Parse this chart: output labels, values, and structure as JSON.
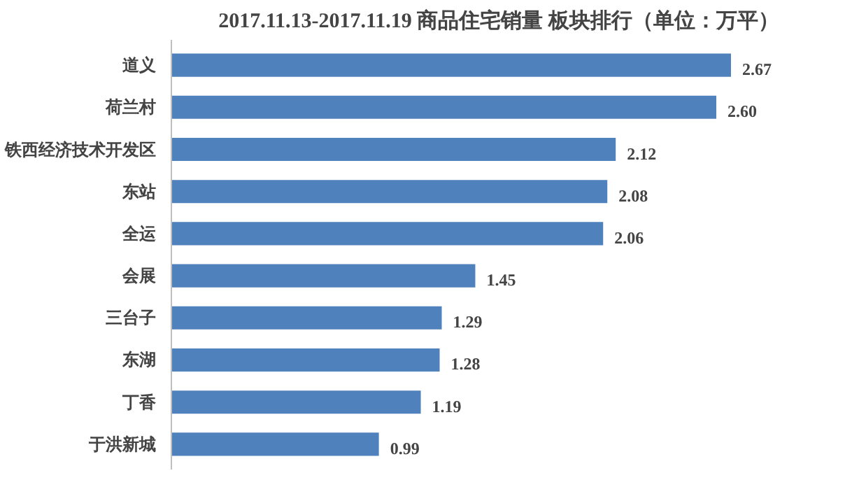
{
  "chart_data": {
    "type": "bar",
    "orientation": "horizontal",
    "title": "2017.11.13-2017.11.19 商品住宅销量 板块排行（单位：万平）",
    "categories": [
      "道义",
      "荷兰村",
      "铁西经济技术开发区",
      "东站",
      "全运",
      "会展",
      "三台子",
      "东湖",
      "丁香",
      "于洪新城"
    ],
    "values": [
      2.67,
      2.6,
      2.12,
      2.08,
      2.06,
      1.45,
      1.29,
      1.28,
      1.19,
      0.99
    ],
    "value_labels": [
      "2.67",
      "2.60",
      "2.12",
      "2.08",
      "2.06",
      "1.45",
      "1.29",
      "1.28",
      "1.19",
      "0.99"
    ],
    "color": "#4f81bd"
  }
}
